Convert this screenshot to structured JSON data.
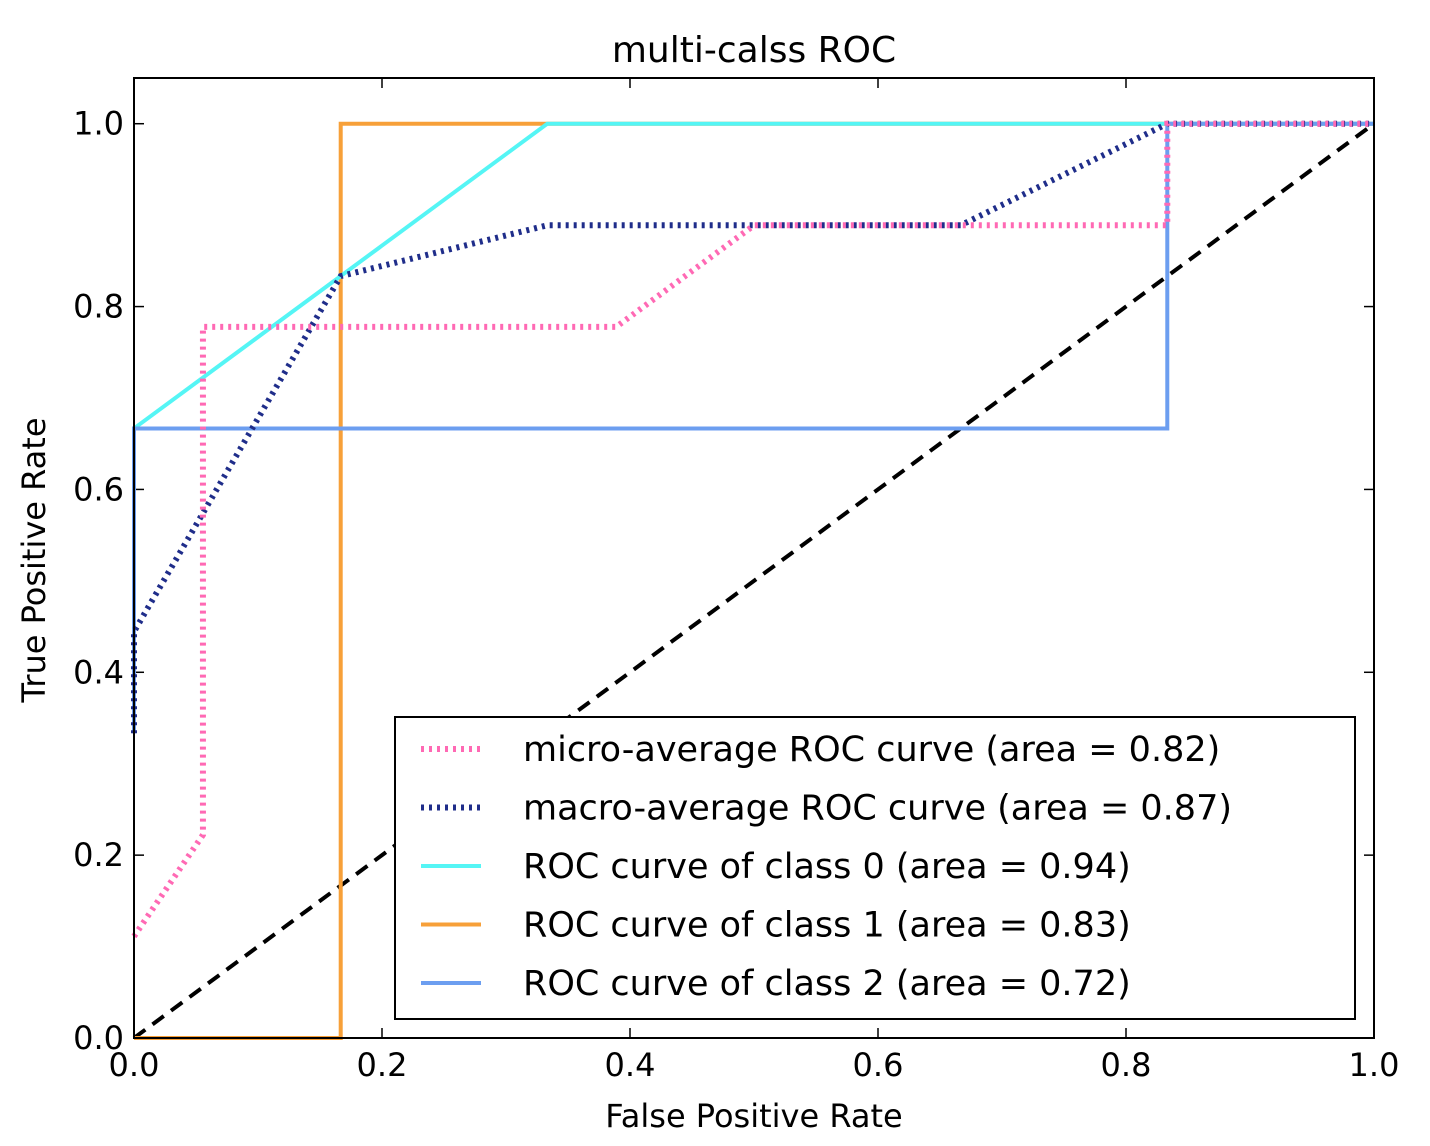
{
  "chart_data": {
    "type": "line",
    "title": "multi-calss ROC",
    "xlabel": "False Positive Rate",
    "ylabel": "True Positive Rate",
    "xlim": [
      0.0,
      1.0
    ],
    "ylim": [
      0.0,
      1.05
    ],
    "xticks": [
      "0.0",
      "0.2",
      "0.4",
      "0.6",
      "0.8",
      "1.0"
    ],
    "yticks": [
      "0.0",
      "0.2",
      "0.4",
      "0.6",
      "0.8",
      "1.0"
    ],
    "grid": false,
    "legend_position": "lower-right",
    "series": [
      {
        "name": "micro-average ROC curve (area = 0.82)",
        "color": "#ff69b4",
        "style": "dotted",
        "x": [
          0.0,
          0.0556,
          0.0556,
          0.3889,
          0.5,
          0.8333,
          0.8333,
          1.0
        ],
        "y": [
          0.1111,
          0.2222,
          0.7778,
          0.7778,
          0.8889,
          0.8889,
          1.0,
          1.0
        ]
      },
      {
        "name": "macro-average ROC curve (area = 0.87)",
        "color": "#1f2d8a",
        "style": "dotted",
        "x": [
          0.0,
          0.0,
          0.0556,
          0.1667,
          0.3333,
          0.6667,
          0.8333,
          1.0
        ],
        "y": [
          0.3333,
          0.4444,
          0.5741,
          0.8333,
          0.8889,
          0.8889,
          1.0,
          1.0
        ]
      },
      {
        "name": "ROC curve of class 0 (area = 0.94)",
        "color": "#55f5f5",
        "style": "solid",
        "x": [
          0.0,
          0.3333,
          1.0
        ],
        "y": [
          0.6667,
          1.0,
          1.0
        ]
      },
      {
        "name": "ROC curve of class 1 (area = 0.83)",
        "color": "#f7a039",
        "style": "solid",
        "x": [
          0.0,
          0.1667,
          0.1667,
          1.0
        ],
        "y": [
          0.0,
          0.0,
          1.0,
          1.0
        ]
      },
      {
        "name": "ROC curve of class 2 (area = 0.72)",
        "color": "#6c9ef0",
        "style": "solid",
        "x": [
          0.0,
          0.0,
          0.8333,
          0.8333,
          1.0
        ],
        "y": [
          0.3333,
          0.6667,
          0.6667,
          1.0,
          1.0
        ]
      }
    ],
    "reference_line": {
      "x": [
        0.0,
        1.0
      ],
      "y": [
        0.0,
        1.0
      ],
      "color": "#000000",
      "style": "dashed"
    }
  }
}
